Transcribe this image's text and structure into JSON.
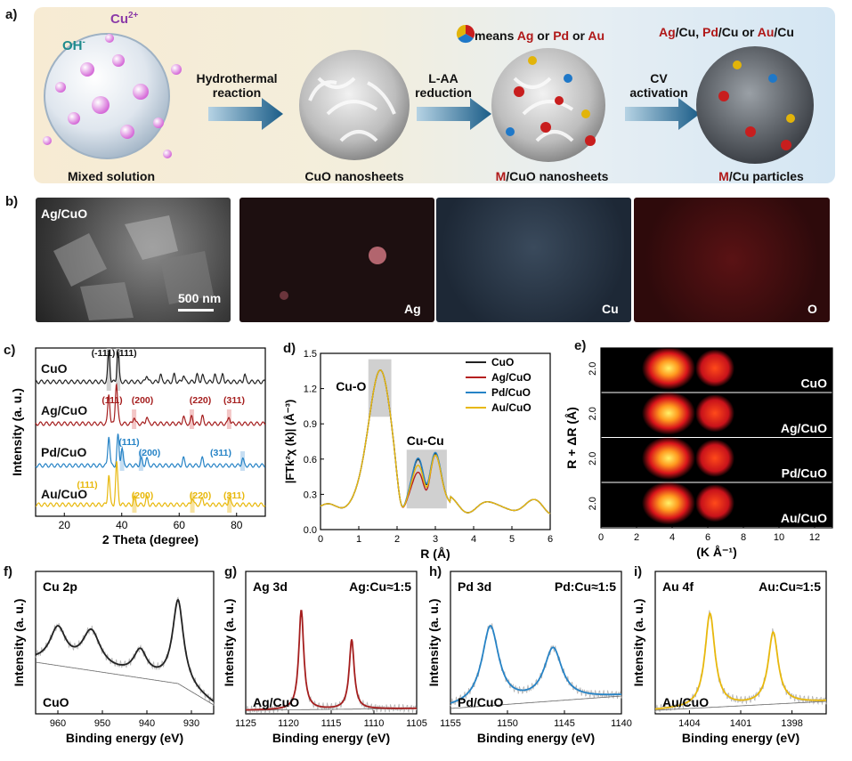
{
  "figure": {
    "panel_labels": [
      "a)",
      "b)",
      "c)",
      "d)",
      "e)",
      "f)",
      "g)",
      "h)",
      "i)"
    ]
  },
  "panel_a": {
    "oh": "OH",
    "oh_sup": "-",
    "cu_ion": "Cu",
    "cu_sup": "2+",
    "legend_prefix": "means",
    "legend_m1": "Ag",
    "legend_or1": "or",
    "legend_m2": "Pd",
    "legend_or2": "or",
    "legend_m3": "Au",
    "top_right": [
      "Ag",
      "/Cu, ",
      "Pd",
      "/Cu or ",
      "Au",
      "/Cu"
    ],
    "steps": [
      {
        "line1": "Hydrothermal",
        "line2": "reaction"
      },
      {
        "line1": "L-AA",
        "line2": "reduction"
      },
      {
        "line1": "CV",
        "line2": "activation"
      }
    ],
    "stages": [
      "Mixed solution",
      "CuO nanosheets",
      "M",
      "/CuO nanosheets",
      "M",
      "/Cu particles"
    ],
    "accent": "#b01818"
  },
  "panel_b": {
    "sample": "Ag/CuO",
    "scale": "500 nm",
    "maps": [
      "Ag",
      "Cu",
      "O"
    ]
  },
  "chart_data": [
    {
      "type": "line",
      "panel": "c",
      "title": "",
      "xlabel": "2 Theta (degree)",
      "ylabel": "Intensity (a. u.)",
      "xlim": [
        10,
        90
      ],
      "xticks": [
        "20",
        "40",
        "60",
        "80"
      ],
      "series": [
        {
          "name": "CuO",
          "color": "#222222",
          "peaks": [
            35.5,
            38.7,
            48.7,
            53.5,
            58.3,
            61.5,
            66.2,
            68.1,
            72.4,
            75.2,
            82.8
          ]
        },
        {
          "name": "Ag/CuO",
          "color": "#a51e1e",
          "peaks": [
            35.5,
            38.1,
            38.7,
            44.3,
            48.7,
            61.5,
            64.4,
            68.1,
            77.4
          ]
        },
        {
          "name": "Pd/CuO",
          "color": "#2683c6",
          "peaks": [
            35.5,
            38.7,
            40.1,
            46.7,
            48.7,
            61.5,
            68.1,
            82.1
          ]
        },
        {
          "name": "Au/CuO",
          "color": "#e8b80c",
          "peaks": [
            35.5,
            38.2,
            38.7,
            44.4,
            48.7,
            64.6,
            68.1,
            77.5
          ]
        }
      ],
      "annotations": [
        {
          "text": "(-111)",
          "series": "CuO"
        },
        {
          "text": "(111)",
          "series": "CuO"
        },
        {
          "text": "(111)",
          "series": "Ag/CuO"
        },
        {
          "text": "(200)",
          "series": "Ag/CuO"
        },
        {
          "text": "(220)",
          "series": "Ag/CuO"
        },
        {
          "text": "(311)",
          "series": "Ag/CuO"
        },
        {
          "text": "(111)",
          "series": "Pd/CuO"
        },
        {
          "text": "(200)",
          "series": "Pd/CuO"
        },
        {
          "text": "(311)",
          "series": "Pd/CuO"
        },
        {
          "text": "(111)",
          "series": "Au/CuO"
        },
        {
          "text": "(200)",
          "series": "Au/CuO"
        },
        {
          "text": "(220)",
          "series": "Au/CuO"
        },
        {
          "text": "(311)",
          "series": "Au/CuO"
        }
      ]
    },
    {
      "type": "line",
      "panel": "d",
      "xlabel": "R (Å)",
      "ylabel": "|FTk²χ (k)| (Å⁻³)",
      "xlim": [
        0,
        6
      ],
      "ylim": [
        0,
        1.5
      ],
      "xticks": [
        "0",
        "1",
        "2",
        "3",
        "4",
        "5",
        "6"
      ],
      "yticks": [
        "0.0",
        "0.3",
        "0.6",
        "0.9",
        "1.2",
        "1.5"
      ],
      "regions": [
        "Cu-O",
        "Cu-Cu"
      ],
      "series": [
        {
          "name": "CuO",
          "color": "#222222",
          "cucu": [
            0.52,
            0.61
          ]
        },
        {
          "name": "Ag/CuO",
          "color": "#b52020",
          "cucu": [
            0.41,
            0.6
          ]
        },
        {
          "name": "Pd/CuO",
          "color": "#2683c6",
          "cucu": [
            0.53,
            0.62
          ]
        },
        {
          "name": "Au/CuO",
          "color": "#e8b80c",
          "cucu": [
            0.47,
            0.6
          ]
        }
      ]
    },
    {
      "type": "heatmap",
      "panel": "e",
      "xlabel": "(K Å⁻¹)",
      "ylabel": "R + ΔR (Å)",
      "xlim": [
        0,
        13
      ],
      "xticks": [
        "0",
        "2",
        "4",
        "6",
        "8",
        "10",
        "12"
      ],
      "ytick": "2.0",
      "rows": [
        "CuO",
        "Ag/CuO",
        "Pd/CuO",
        "Au/CuO"
      ]
    },
    {
      "type": "line",
      "panel": "f",
      "title": "Cu 2p",
      "sample": "CuO",
      "xlabel": "Binding energy (eV)",
      "ylabel": "Intensity (a. u.)",
      "xlim": [
        965,
        925
      ],
      "xticks": [
        "960",
        "950",
        "940",
        "930"
      ],
      "color": "#222222",
      "peaks": [
        960,
        952.5,
        941.5,
        933
      ]
    },
    {
      "type": "line",
      "panel": "g",
      "title": "Ag 3d",
      "ratio": "Ag:Cu≈1:5",
      "sample": "Ag/CuO",
      "xlabel": "Binding energy (eV)",
      "ylabel": "Intensity (a. u.)",
      "xlim": [
        1125,
        1105
      ],
      "xticks": [
        "1125",
        "1120",
        "1115",
        "1110",
        "1105"
      ],
      "color": "#a51e1e",
      "peaks": [
        1118.5,
        1112.6
      ]
    },
    {
      "type": "line",
      "panel": "h",
      "title": "Pd 3d",
      "ratio": "Pd:Cu≈1:5",
      "sample": "Pd/CuO",
      "xlabel": "Binding energy (eV)",
      "ylabel": "Intensity (a. u.)",
      "xlim": [
        1155,
        1140
      ],
      "xticks": [
        "1155",
        "1150",
        "1145",
        "1140"
      ],
      "color": "#2683c6",
      "peaks": [
        1151.5,
        1146
      ]
    },
    {
      "type": "line",
      "panel": "i",
      "title": "Au 4f",
      "ratio": "Au:Cu≈1:5",
      "sample": "Au/CuO",
      "xlabel": "Binding energy (eV)",
      "ylabel": "Intensity (a. u.)",
      "xlim": [
        1406,
        1396
      ],
      "xticks": [
        "1404",
        "1401",
        "1398"
      ],
      "color": "#e8b80c",
      "peaks": [
        1402.8,
        1399.1
      ]
    }
  ]
}
